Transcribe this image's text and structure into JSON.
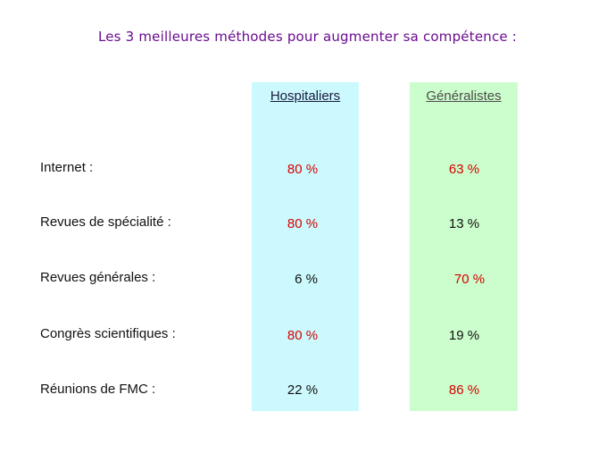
{
  "title": "Les 3 meilleures méthodes pour augmenter sa compétence :",
  "colors": {
    "title": "#6a0d8f",
    "hospitaliers_bg": "#ccf9fd",
    "generalistes_bg": "#ccfdcc",
    "hospitaliers_head": "#1a1a40",
    "generalistes_head": "#4d4d4d",
    "highlight": "#d60000",
    "normal": "#111111"
  },
  "columns": [
    {
      "label": "Hospitaliers"
    },
    {
      "label": "Généralistes"
    }
  ],
  "rows": [
    {
      "label": "Internet :",
      "hospitaliers": "80 %",
      "hospitaliers_hl": true,
      "generalistes": "63 %",
      "generalistes_hl": true
    },
    {
      "label": "Revues de spécialité :",
      "hospitaliers": "80 %",
      "hospitaliers_hl": true,
      "generalistes": "13 %",
      "generalistes_hl": false
    },
    {
      "label": "Revues générales :",
      "hospitaliers": "6 %",
      "hospitaliers_hl": false,
      "generalistes": "70 %",
      "generalistes_hl": true
    },
    {
      "label": "Congrès scientifiques :",
      "hospitaliers": "80 %",
      "hospitaliers_hl": true,
      "generalistes": "19 %",
      "generalistes_hl": false
    },
    {
      "label": "Réunions de FMC :",
      "hospitaliers": "22 %",
      "hospitaliers_hl": false,
      "generalistes": "86 %",
      "generalistes_hl": true
    }
  ]
}
